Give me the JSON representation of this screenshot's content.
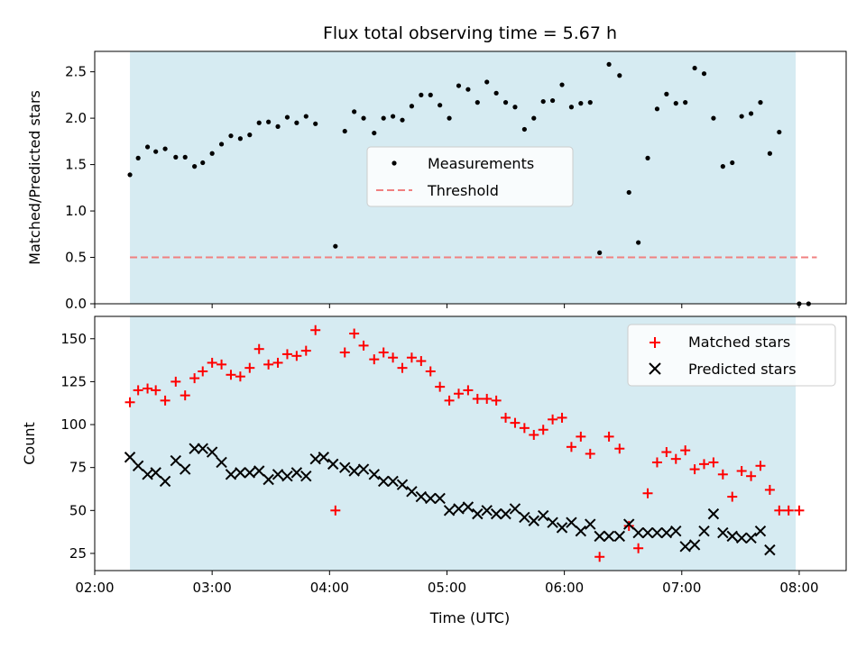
{
  "figure": {
    "title": "Flux total observing time = 5.67 h"
  },
  "colors": {
    "shade": "#ADD8E6",
    "measurement": "#000000",
    "threshold": "#F08080",
    "matched": "#FF0000",
    "predicted": "#000000"
  },
  "chart_data": [
    {
      "type": "scatter",
      "title": "Flux total observing time = 5.67 h",
      "xlabel": "",
      "ylabel": "Matched/Predicted stars",
      "xlim_hours": [
        2.0,
        8.4
      ],
      "ylim": [
        0.0,
        2.72
      ],
      "yticks": [
        0.0,
        0.5,
        1.0,
        1.5,
        2.0,
        2.5
      ],
      "ytick_labels": [
        "0.0",
        "0.5",
        "1.0",
        "1.5",
        "2.0",
        "2.5"
      ],
      "shaded_span_hours": [
        2.3,
        7.97
      ],
      "threshold": 0.5,
      "threshold_span_hours": [
        2.3,
        8.15
      ],
      "legend": [
        "Measurements",
        "Threshold"
      ],
      "legend_position": "center",
      "series": [
        {
          "name": "Measurements",
          "points": [
            [
              2.3,
              1.39
            ],
            [
              2.37,
              1.57
            ],
            [
              2.45,
              1.69
            ],
            [
              2.52,
              1.64
            ],
            [
              2.6,
              1.67
            ],
            [
              2.69,
              1.58
            ],
            [
              2.77,
              1.58
            ],
            [
              2.85,
              1.48
            ],
            [
              2.92,
              1.52
            ],
            [
              3.0,
              1.62
            ],
            [
              3.08,
              1.72
            ],
            [
              3.16,
              1.81
            ],
            [
              3.24,
              1.78
            ],
            [
              3.32,
              1.82
            ],
            [
              3.4,
              1.95
            ],
            [
              3.48,
              1.96
            ],
            [
              3.56,
              1.91
            ],
            [
              3.64,
              2.01
            ],
            [
              3.72,
              1.95
            ],
            [
              3.8,
              2.02
            ],
            [
              3.88,
              1.94
            ],
            [
              4.05,
              0.62
            ],
            [
              4.13,
              1.86
            ],
            [
              4.21,
              2.07
            ],
            [
              4.29,
              2.0
            ],
            [
              4.38,
              1.84
            ],
            [
              4.46,
              2.0
            ],
            [
              4.54,
              2.02
            ],
            [
              4.62,
              1.98
            ],
            [
              4.7,
              2.13
            ],
            [
              4.78,
              2.25
            ],
            [
              4.86,
              2.25
            ],
            [
              4.94,
              2.14
            ],
            [
              5.02,
              2.0
            ],
            [
              5.1,
              2.35
            ],
            [
              5.18,
              2.31
            ],
            [
              5.26,
              2.17
            ],
            [
              5.34,
              2.39
            ],
            [
              5.42,
              2.27
            ],
            [
              5.5,
              2.17
            ],
            [
              5.58,
              2.12
            ],
            [
              5.66,
              1.88
            ],
            [
              5.74,
              2.0
            ],
            [
              5.82,
              2.18
            ],
            [
              5.9,
              2.19
            ],
            [
              5.98,
              2.36
            ],
            [
              6.06,
              2.12
            ],
            [
              6.14,
              2.16
            ],
            [
              6.22,
              2.17
            ],
            [
              6.3,
              0.55
            ],
            [
              6.38,
              2.58
            ],
            [
              6.47,
              2.46
            ],
            [
              6.55,
              1.2
            ],
            [
              6.63,
              0.66
            ],
            [
              6.71,
              1.57
            ],
            [
              6.79,
              2.1
            ],
            [
              6.87,
              2.26
            ],
            [
              6.95,
              2.16
            ],
            [
              7.03,
              2.17
            ],
            [
              7.11,
              2.54
            ],
            [
              7.19,
              2.48
            ],
            [
              7.27,
              2.0
            ],
            [
              7.35,
              1.48
            ],
            [
              7.43,
              1.52
            ],
            [
              7.51,
              2.02
            ],
            [
              7.59,
              2.05
            ],
            [
              7.67,
              2.17
            ],
            [
              7.75,
              1.62
            ],
            [
              7.83,
              1.85
            ],
            [
              8.0,
              0.0
            ],
            [
              8.08,
              0.0
            ]
          ]
        }
      ]
    },
    {
      "type": "scatter",
      "title": "",
      "xlabel": "Time (UTC)",
      "ylabel": "Count",
      "xlim_hours": [
        2.0,
        8.4
      ],
      "ylim": [
        15,
        163
      ],
      "yticks": [
        25,
        50,
        75,
        100,
        125,
        150
      ],
      "ytick_labels": [
        "25",
        "50",
        "75",
        "100",
        "125",
        "150"
      ],
      "xticks_hours": [
        2,
        3,
        4,
        5,
        6,
        7,
        8
      ],
      "xtick_labels": [
        "02:00",
        "03:00",
        "04:00",
        "05:00",
        "06:00",
        "07:00",
        "08:00"
      ],
      "shaded_span_hours": [
        2.3,
        7.97
      ],
      "legend": [
        "Matched stars",
        "Predicted stars"
      ],
      "legend_position": "upper right",
      "series": [
        {
          "name": "Matched stars",
          "marker": "plus",
          "points": [
            [
              2.3,
              113
            ],
            [
              2.37,
              120
            ],
            [
              2.45,
              121
            ],
            [
              2.52,
              120
            ],
            [
              2.6,
              114
            ],
            [
              2.69,
              125
            ],
            [
              2.77,
              117
            ],
            [
              2.85,
              127
            ],
            [
              2.92,
              131
            ],
            [
              3.0,
              136
            ],
            [
              3.08,
              135
            ],
            [
              3.16,
              129
            ],
            [
              3.24,
              128
            ],
            [
              3.32,
              133
            ],
            [
              3.4,
              144
            ],
            [
              3.48,
              135
            ],
            [
              3.56,
              136
            ],
            [
              3.64,
              141
            ],
            [
              3.72,
              140
            ],
            [
              3.8,
              143
            ],
            [
              3.88,
              155
            ],
            [
              4.05,
              50
            ],
            [
              4.13,
              142
            ],
            [
              4.21,
              153
            ],
            [
              4.29,
              146
            ],
            [
              4.38,
              138
            ],
            [
              4.46,
              142
            ],
            [
              4.54,
              139
            ],
            [
              4.62,
              133
            ],
            [
              4.7,
              139
            ],
            [
              4.78,
              137
            ],
            [
              4.86,
              131
            ],
            [
              4.94,
              122
            ],
            [
              5.02,
              114
            ],
            [
              5.1,
              118
            ],
            [
              5.18,
              120
            ],
            [
              5.26,
              115
            ],
            [
              5.34,
              115
            ],
            [
              5.42,
              114
            ],
            [
              5.5,
              104
            ],
            [
              5.58,
              101
            ],
            [
              5.66,
              98
            ],
            [
              5.74,
              94
            ],
            [
              5.82,
              97
            ],
            [
              5.9,
              103
            ],
            [
              5.98,
              104
            ],
            [
              6.06,
              87
            ],
            [
              6.14,
              93
            ],
            [
              6.22,
              83
            ],
            [
              6.3,
              23
            ],
            [
              6.38,
              93
            ],
            [
              6.47,
              86
            ],
            [
              6.55,
              41
            ],
            [
              6.63,
              28
            ],
            [
              6.71,
              60
            ],
            [
              6.79,
              78
            ],
            [
              6.87,
              84
            ],
            [
              6.95,
              80
            ],
            [
              7.03,
              85
            ],
            [
              7.11,
              74
            ],
            [
              7.19,
              77
            ],
            [
              7.27,
              78
            ],
            [
              7.35,
              71
            ],
            [
              7.43,
              58
            ],
            [
              7.51,
              73
            ],
            [
              7.59,
              70
            ],
            [
              7.67,
              76
            ],
            [
              7.75,
              62
            ],
            [
              7.83,
              50
            ],
            [
              7.91,
              50
            ],
            [
              8.0,
              50
            ]
          ]
        },
        {
          "name": "Predicted stars",
          "marker": "x",
          "points": [
            [
              2.3,
              81
            ],
            [
              2.37,
              76
            ],
            [
              2.45,
              71
            ],
            [
              2.52,
              72
            ],
            [
              2.6,
              67
            ],
            [
              2.69,
              79
            ],
            [
              2.77,
              74
            ],
            [
              2.85,
              86
            ],
            [
              2.92,
              86
            ],
            [
              3.0,
              84
            ],
            [
              3.08,
              78
            ],
            [
              3.16,
              71
            ],
            [
              3.24,
              72
            ],
            [
              3.32,
              72
            ],
            [
              3.4,
              73
            ],
            [
              3.48,
              68
            ],
            [
              3.56,
              71
            ],
            [
              3.64,
              70
            ],
            [
              3.72,
              72
            ],
            [
              3.8,
              70
            ],
            [
              3.88,
              80
            ],
            [
              3.95,
              81
            ],
            [
              4.03,
              77
            ],
            [
              4.13,
              75
            ],
            [
              4.21,
              73
            ],
            [
              4.29,
              74
            ],
            [
              4.38,
              71
            ],
            [
              4.46,
              67
            ],
            [
              4.54,
              67
            ],
            [
              4.62,
              65
            ],
            [
              4.7,
              61
            ],
            [
              4.78,
              58
            ],
            [
              4.86,
              57
            ],
            [
              4.94,
              57
            ],
            [
              5.02,
              50
            ],
            [
              5.1,
              51
            ],
            [
              5.18,
              52
            ],
            [
              5.26,
              48
            ],
            [
              5.34,
              50
            ],
            [
              5.42,
              48
            ],
            [
              5.5,
              48
            ],
            [
              5.58,
              51
            ],
            [
              5.66,
              46
            ],
            [
              5.74,
              44
            ],
            [
              5.82,
              47
            ],
            [
              5.9,
              43
            ],
            [
              5.98,
              40
            ],
            [
              6.06,
              43
            ],
            [
              6.14,
              38
            ],
            [
              6.22,
              42
            ],
            [
              6.3,
              35
            ],
            [
              6.38,
              35
            ],
            [
              6.47,
              35
            ],
            [
              6.55,
              42
            ],
            [
              6.63,
              37
            ],
            [
              6.71,
              37
            ],
            [
              6.79,
              37
            ],
            [
              6.87,
              37
            ],
            [
              6.95,
              38
            ],
            [
              7.03,
              29
            ],
            [
              7.11,
              30
            ],
            [
              7.19,
              38
            ],
            [
              7.27,
              48
            ],
            [
              7.35,
              37
            ],
            [
              7.43,
              35
            ],
            [
              7.51,
              34
            ],
            [
              7.59,
              34
            ],
            [
              7.67,
              38
            ],
            [
              7.75,
              27
            ]
          ]
        }
      ]
    }
  ]
}
